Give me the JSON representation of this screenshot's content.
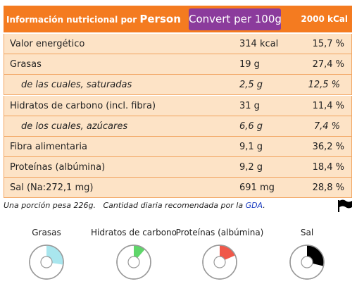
{
  "header": {
    "title": "Información nutricional por",
    "unit": "Person",
    "button": "Convert per 100g",
    "energy": "2000 kCal"
  },
  "rows": [
    {
      "name": "Valor energético",
      "amount": "314 kcal",
      "daily": "15,7 %",
      "sub": false
    },
    {
      "name": "Grasas",
      "amount": "19 g",
      "daily": "27,4 %",
      "sub": false
    },
    {
      "name": "de las cuales, saturadas",
      "amount": "2,5 g",
      "daily": "12,5 %",
      "sub": true
    },
    {
      "name": "Hidratos de carbono (incl. fibra)",
      "amount": "31 g",
      "daily": "11,4 %",
      "sub": false
    },
    {
      "name": "de los cuales, azúcares",
      "amount": "6,6 g",
      "daily": "7,4 %",
      "sub": true
    },
    {
      "name": "Fibra alimentaria",
      "amount": "9,1 g",
      "daily": "36,2 %",
      "sub": false
    },
    {
      "name": "Proteínas (albúmina)",
      "amount": "9,2 g",
      "daily": "18,4 %",
      "sub": false
    },
    {
      "name": "Sal (Na:272,1 mg)",
      "amount": "691 mg",
      "daily": "28,8 %",
      "sub": false
    }
  ],
  "footer": {
    "portion": "Una porción pesa 226g.",
    "note": "Cantidad diaria recomendada por la",
    "link": "GDA",
    "end": "."
  },
  "gauges": [
    {
      "label": "Grasas",
      "percent": 27.4,
      "color": "#a9e6ee"
    },
    {
      "label": "Hidratos de carbono",
      "percent": 11.4,
      "color": "#5fd66a"
    },
    {
      "label": "Proteínas (albúmina)",
      "percent": 18.4,
      "color": "#f0584a"
    },
    {
      "label": "Sal",
      "percent": 28.8,
      "color": "#000000"
    }
  ]
}
